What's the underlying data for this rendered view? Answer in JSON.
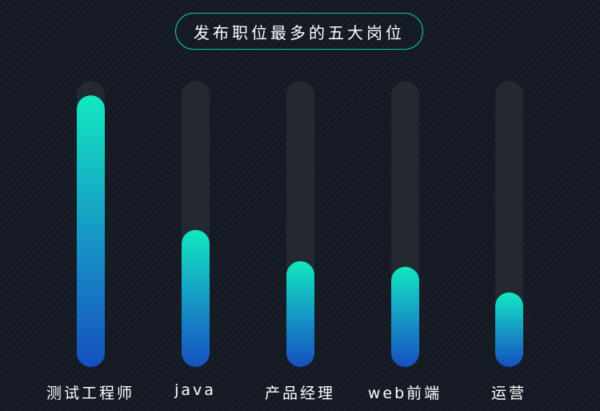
{
  "header": {
    "title": "发布职位最多的五大岗位"
  },
  "chart_data": {
    "type": "bar",
    "title": "发布职位最多的五大岗位",
    "categories": [
      "测试工程师",
      "java",
      "产品经理",
      "web前端",
      "运营"
    ],
    "values": [
      95,
      48,
      37,
      35,
      26
    ],
    "ylim": [
      0,
      100
    ],
    "grid": false,
    "colors": {
      "track": "#232831",
      "gradient_top": "#12e8c0",
      "gradient_bottom": "#1650bf",
      "accent": "#18c7a7"
    }
  }
}
